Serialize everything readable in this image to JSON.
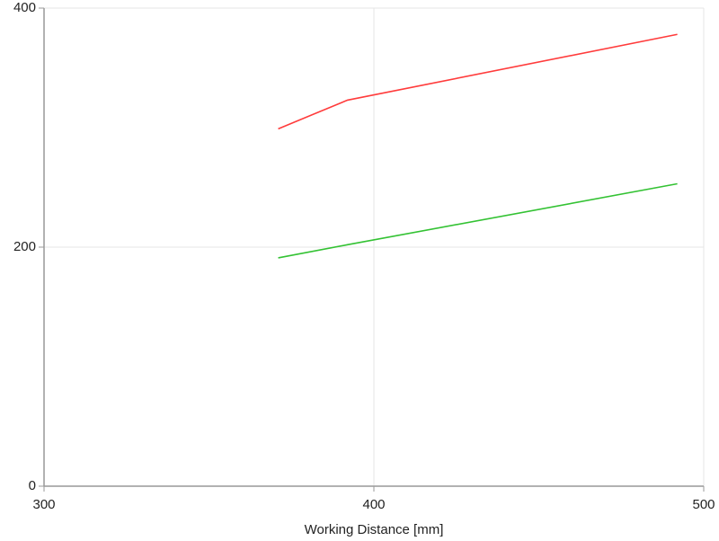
{
  "chart_data": {
    "type": "line",
    "x_label": "Working Distance [mm]",
    "x": [
      371,
      392,
      492
    ],
    "series": [
      {
        "color": "#ff3b3b",
        "values": [
          299,
          323,
          378
        ]
      },
      {
        "color": "#33c233",
        "values": [
          191,
          202,
          253
        ]
      }
    ],
    "xlim": [
      300,
      500
    ],
    "xticks": [
      300,
      400,
      500
    ],
    "ylim": [
      0,
      400
    ],
    "yticks": [
      0,
      200,
      400
    ],
    "grid": true
  }
}
